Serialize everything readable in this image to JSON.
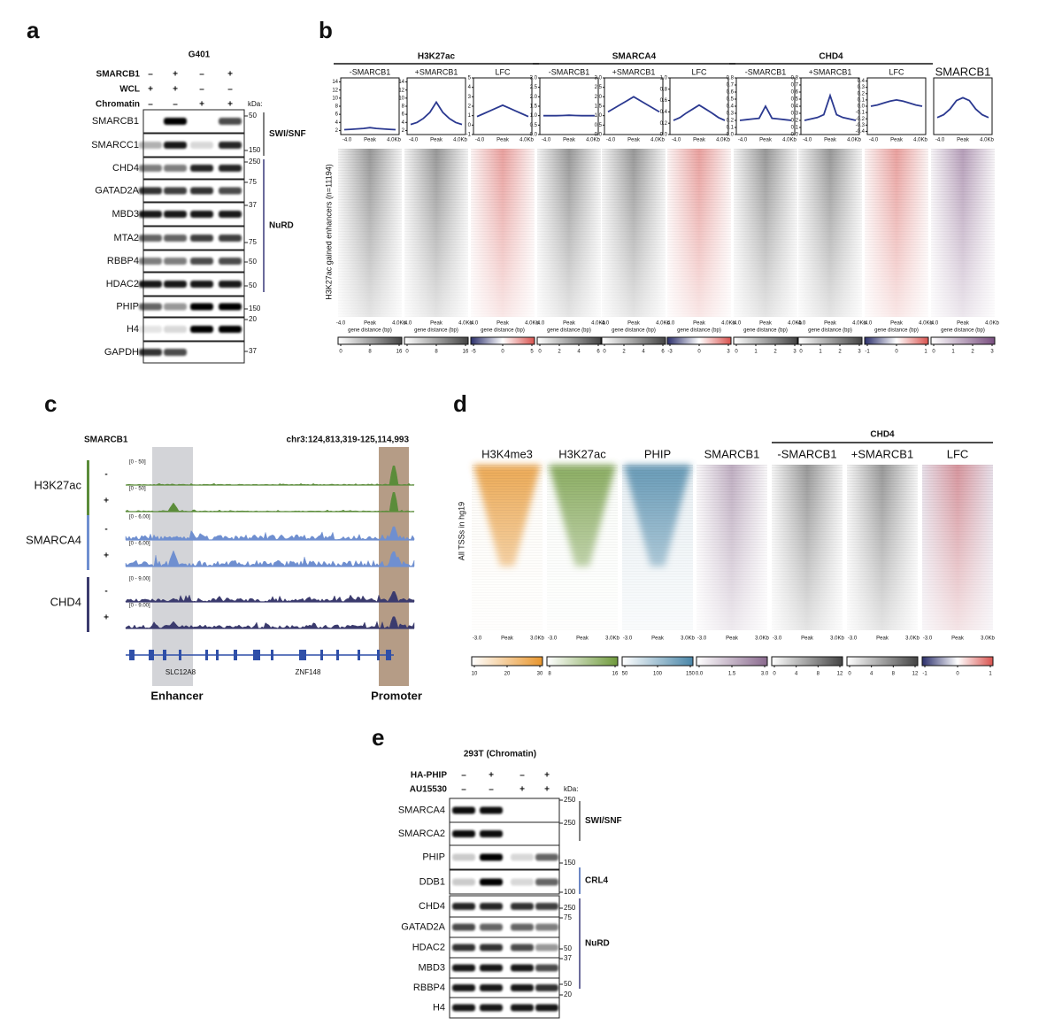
{
  "panel_a": {
    "letter": "a",
    "cell_line": "G401",
    "kda_label": "kDa:",
    "conditions": [
      {
        "label": "SMARCB1",
        "signs": [
          "–",
          "+",
          "–",
          "+"
        ]
      },
      {
        "label": "WCL",
        "signs": [
          "+",
          "+",
          "–",
          "–"
        ]
      },
      {
        "label": "Chromatin",
        "signs": [
          "–",
          "–",
          "+",
          "+"
        ]
      }
    ],
    "blots": [
      {
        "label": "SMARCB1",
        "marker": 50
      },
      {
        "label": "SMARCC1",
        "marker": 150
      },
      {
        "label": "CHD4",
        "marker": 250
      },
      {
        "label": "GATAD2A",
        "marker": 75
      },
      {
        "label": "MBD3",
        "marker": 37
      },
      {
        "label": "MTA2",
        "marker": 75
      },
      {
        "label": "RBBP4",
        "marker": 50
      },
      {
        "label": "HDAC2",
        "marker": 50
      },
      {
        "label": "PHIP",
        "marker": 150
      },
      {
        "label": "H4",
        "marker": 20
      },
      {
        "label": "GAPDH",
        "marker": 37
      }
    ],
    "complexes": [
      "SWI/SNF",
      "NuRD"
    ]
  },
  "panel_b": {
    "letter": "b",
    "y_label": "H3K27ac gained enhancers (n=11194)",
    "x_ticks": [
      "-4.0",
      "Peak",
      "4.0Kb"
    ],
    "x_label": "gene distance (bp)",
    "groups": [
      {
        "title": "H3K27ac",
        "plots": [
          {
            "subtitle": "-SMARCB1",
            "color": "#444444",
            "ylim": [
              1,
              15
            ],
            "yticks": [
              2,
              4,
              6,
              8,
              10,
              12,
              14
            ],
            "values": [
              2.2,
              2.3,
              2.4,
              2.5,
              2.7,
              2.5,
              2.4,
              2.3,
              2.2
            ],
            "colorbar_ticks": [
              0,
              8,
              16
            ]
          },
          {
            "subtitle": "+SMARCB1",
            "color": "#444444",
            "ylim": [
              1,
              15
            ],
            "yticks": [
              2,
              4,
              6,
              8,
              10,
              12,
              14
            ],
            "values": [
              3.5,
              4,
              5,
              6.5,
              9,
              6.5,
              5,
              4,
              3.5
            ],
            "colorbar_ticks": [
              0,
              8,
              16
            ]
          },
          {
            "subtitle": "LFC",
            "color": "#d9534f",
            "ylim": [
              -1,
              5
            ],
            "yticks": [
              -1,
              0,
              1,
              2,
              3,
              4,
              5
            ],
            "values": [
              0.9,
              1.2,
              1.5,
              1.8,
              2.1,
              1.8,
              1.5,
              1.2,
              0.9
            ],
            "colorbar_ticks": [
              -5,
              0,
              5
            ]
          }
        ]
      },
      {
        "title": "SMARCA4",
        "plots": [
          {
            "subtitle": "-SMARCB1",
            "color": "#444444",
            "ylim": [
              0,
              3
            ],
            "yticks": [
              {
                "value": 0,
                "label": "0.0"
              },
              0.5,
              {
                "value": 1,
                "label": "1.0"
              },
              1.5,
              {
                "value": 2,
                "label": "2.0"
              },
              2.5,
              {
                "value": 3,
                "label": "3.0"
              }
            ],
            "values": [
              1,
              1,
              1,
              1.01,
              1.02,
              1.01,
              1,
              1,
              1
            ],
            "colorbar_ticks": [
              0,
              2,
              4,
              6
            ]
          },
          {
            "subtitle": "+SMARCB1",
            "color": "#444444",
            "ylim": [
              0,
              3
            ],
            "yticks": [
              {
                "value": 0,
                "label": "0.0"
              },
              0.5,
              {
                "value": 1,
                "label": "1.0"
              },
              1.5,
              {
                "value": 2,
                "label": "2.0"
              },
              2.5,
              {
                "value": 3,
                "label": "3.0"
              }
            ],
            "values": [
              1.2,
              1.4,
              1.6,
              1.8,
              2,
              1.8,
              1.6,
              1.4,
              1.2
            ],
            "colorbar_ticks": [
              0,
              2,
              4,
              6
            ]
          },
          {
            "subtitle": "LFC",
            "color": "#d9534f",
            "ylim": [
              0,
              1
            ],
            "yticks": [
              {
                "value": 0,
                "label": "0.0"
              },
              0.2,
              0.4,
              0.6,
              0.8,
              {
                "value": 1,
                "label": "1.0"
              }
            ],
            "values": [
              0.25,
              0.3,
              0.38,
              0.45,
              0.52,
              0.45,
              0.38,
              0.3,
              0.25
            ],
            "colorbar_ticks": [
              -3,
              0,
              3
            ]
          }
        ]
      },
      {
        "title": "CHD4",
        "plots": [
          {
            "subtitle": "-SMARCB1",
            "color": "#444444",
            "ylim": [
              0,
              0.8
            ],
            "yticks": [
              {
                "value": 0,
                "label": "0.0"
              },
              0.1,
              0.2,
              0.3,
              0.4,
              0.5,
              0.6,
              0.7,
              0.8
            ],
            "values": [
              0.2,
              0.21,
              0.22,
              0.23,
              0.4,
              0.23,
              0.22,
              0.21,
              0.2
            ],
            "colorbar_ticks": [
              0,
              1,
              2,
              3
            ]
          },
          {
            "subtitle": "+SMARCB1",
            "color": "#444444",
            "ylim": [
              0,
              0.8
            ],
            "yticks": [
              {
                "value": 0,
                "label": "0.0"
              },
              0.1,
              0.2,
              0.3,
              0.4,
              0.5,
              0.6,
              0.7,
              0.8
            ],
            "values": [
              0.2,
              0.22,
              0.24,
              0.28,
              0.55,
              0.28,
              0.24,
              0.22,
              0.2
            ],
            "colorbar_ticks": [
              0,
              1,
              2,
              3
            ]
          },
          {
            "subtitle": "LFC",
            "color": "#d9534f",
            "ylim": [
              -0.45,
              0.45
            ],
            "yticks": [
              -0.4,
              -0.3,
              -0.2,
              -0.1,
              {
                "value": 0,
                "label": "0.0"
              },
              0.1,
              0.2,
              0.3,
              0.4
            ],
            "values": [
              0,
              0.02,
              0.05,
              0.08,
              0.1,
              0.08,
              0.05,
              0.02,
              0
            ],
            "colorbar_ticks": [
              -1,
              0,
              1
            ]
          }
        ]
      },
      {
        "title": "SMARCB1",
        "title_color": "#8a6a8e",
        "plots": [
          {
            "color": "#7a4f80",
            "ylim": [
              0,
              1
            ],
            "yticks": [],
            "values": [
              0.3,
              0.35,
              0.45,
              0.6,
              0.65,
              0.6,
              0.45,
              0.35,
              0.3
            ],
            "colorbar_ticks": [
              0,
              1,
              2,
              3
            ]
          }
        ]
      }
    ]
  },
  "panel_c": {
    "letter": "c",
    "sample": "SMARCB1",
    "locus": "chr3:124,813,319-125,114,993",
    "tracks": [
      {
        "group": "H3K27ac",
        "color": "#5b8c3a",
        "rows": [
          {
            "sign": "-",
            "range": "[0 - 50]"
          },
          {
            "sign": "+",
            "range": "[0 - 50]"
          }
        ]
      },
      {
        "group": "SMARCA4",
        "color": "#6f8fd0",
        "rows": [
          {
            "sign": "-",
            "range": "[0 - 6.00]"
          },
          {
            "sign": "+",
            "range": "[0 - 6.00]"
          }
        ]
      },
      {
        "group": "CHD4",
        "color": "#3b3b6e",
        "rows": [
          {
            "sign": "-",
            "range": "[0 - 9.00]"
          },
          {
            "sign": "+",
            "range": "[0 - 9.00]"
          }
        ]
      }
    ],
    "genes": [
      "SLC12A8",
      "ZNF148"
    ],
    "regions": [
      "Enhancer",
      "Promoter"
    ]
  },
  "panel_d": {
    "letter": "d",
    "y_label": "All TSSs in hg19",
    "x_ticks": [
      "-3.0",
      "Peak",
      "3.0Kb"
    ],
    "group_title": "CHD4",
    "heatmaps": [
      {
        "title": "H3K4me3",
        "color": "#e8962e",
        "colorbar_ticks": [
          10,
          20,
          30
        ]
      },
      {
        "title": "H3K27ac",
        "color": "#6f9a3c",
        "colorbar_ticks": [
          8,
          16
        ]
      },
      {
        "title": "PHIP",
        "color": "#4a86a8",
        "colorbar_ticks": [
          50,
          100,
          150
        ]
      },
      {
        "title": "SMARCB1",
        "color": "#8a6a8e",
        "colorbar_ticks": [
          {
            "value": 0,
            "label": "0.0"
          },
          1.5,
          {
            "value": 3,
            "label": "3.0"
          }
        ]
      },
      {
        "title": "-SMARCB1",
        "color": "#444444",
        "colorbar_ticks": [
          0,
          4,
          8,
          12
        ]
      },
      {
        "title": "+SMARCB1",
        "color": "#444444",
        "colorbar_ticks": [
          0,
          4,
          8,
          12
        ]
      },
      {
        "title": "LFC",
        "color": "#d9534f",
        "colorbar_ticks": [
          -1,
          0,
          1
        ]
      }
    ]
  },
  "panel_e": {
    "letter": "e",
    "title": "293T (Chromatin)",
    "kda_label": "kDa:",
    "conditions": [
      {
        "label": "HA-PHIP",
        "signs": [
          "–",
          "+",
          "–",
          "+"
        ]
      },
      {
        "label": "AU15530",
        "signs": [
          "–",
          "–",
          "+",
          "+"
        ]
      }
    ],
    "blots": [
      {
        "label": "SMARCA4",
        "marker": 250
      },
      {
        "label": "SMARCA2",
        "marker": 250
      },
      {
        "label": "PHIP",
        "marker": 150
      },
      {
        "label": "DDB1",
        "marker": 100
      },
      {
        "label": "CHD4",
        "marker": 250
      },
      {
        "label": "GATAD2A",
        "marker": 75
      },
      {
        "label": "HDAC2",
        "marker": 50
      },
      {
        "label": "MBD3",
        "marker": 37
      },
      {
        "label": "RBBP4",
        "marker": 50
      },
      {
        "label": "H4",
        "marker": 20
      }
    ],
    "complexes": [
      "SWI/SNF",
      "CRL4",
      "NuRD"
    ]
  }
}
